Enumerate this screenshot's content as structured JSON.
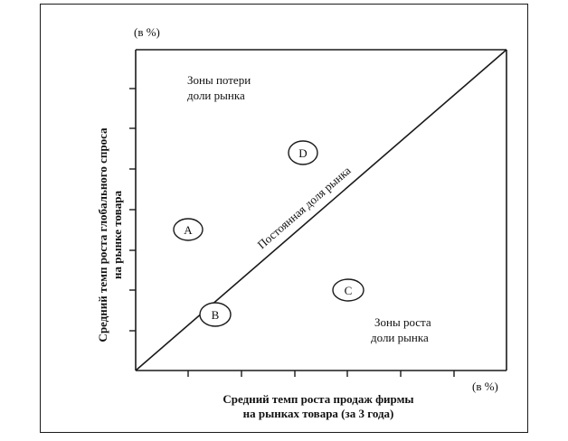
{
  "unit_top": "(в %)",
  "unit_right": "(в %)",
  "y_axis_label": {
    "line1": "Средний темп роста глобального спроса",
    "line2": "на рынке товара"
  },
  "x_axis_label": {
    "line1": "Средний темп роста продаж фирмы",
    "line2": "на рынках товара (за 3 года)"
  },
  "zone_loss": {
    "line1": "Зоны потери",
    "line2": "доли рынка"
  },
  "zone_growth": {
    "line1": "Зоны роста",
    "line2": "доли рынка"
  },
  "diagonal_label": "Постоянная доля рынка",
  "points": [
    {
      "id": "A",
      "label": "A"
    },
    {
      "id": "B",
      "label": "B"
    },
    {
      "id": "C",
      "label": "C"
    },
    {
      "id": "D",
      "label": "D"
    }
  ]
}
